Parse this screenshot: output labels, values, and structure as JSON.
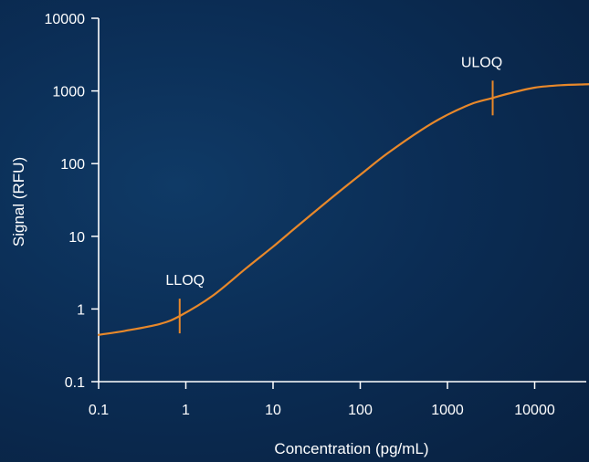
{
  "chart_data": {
    "type": "line",
    "xlabel": "Concentration (pg/mL)",
    "ylabel": "Signal (RFU)",
    "x_scale": "log",
    "y_scale": "log",
    "xlim": [
      0.1,
      50000
    ],
    "ylim": [
      0.1,
      10000
    ],
    "x_ticks": [
      {
        "value": 0.1,
        "label": "0.1"
      },
      {
        "value": 1,
        "label": "1"
      },
      {
        "value": 10,
        "label": "10"
      },
      {
        "value": 100,
        "label": "100"
      },
      {
        "value": 1000,
        "label": "1000"
      },
      {
        "value": 10000,
        "label": "10000"
      }
    ],
    "y_ticks": [
      {
        "value": 0.1,
        "label": "0.1"
      },
      {
        "value": 1,
        "label": "1"
      },
      {
        "value": 10,
        "label": "10"
      },
      {
        "value": 100,
        "label": "100"
      },
      {
        "value": 1000,
        "label": "1000"
      },
      {
        "value": 10000,
        "label": "10000"
      }
    ],
    "series": [
      {
        "color": "#e8882a",
        "x": [
          0.1,
          0.2,
          0.5,
          0.85,
          2,
          5,
          10,
          20,
          50,
          100,
          200,
          500,
          1000,
          2000,
          3300,
          5000,
          10000,
          20000,
          45000
        ],
        "y": [
          0.44,
          0.5,
          0.62,
          0.8,
          1.5,
          3.7,
          7.2,
          14.5,
          36,
          70,
          135,
          290,
          470,
          680,
          800,
          920,
          1110,
          1200,
          1240
        ]
      }
    ],
    "annotations": [
      {
        "label": "LLOQ",
        "x": 0.85,
        "y": 0.8
      },
      {
        "label": "ULOQ",
        "x": 3300,
        "y": 800
      }
    ],
    "grid": false,
    "colors": {
      "axis": "#ffffff",
      "curve": "#e8882a",
      "background": "#0b2d55"
    }
  }
}
